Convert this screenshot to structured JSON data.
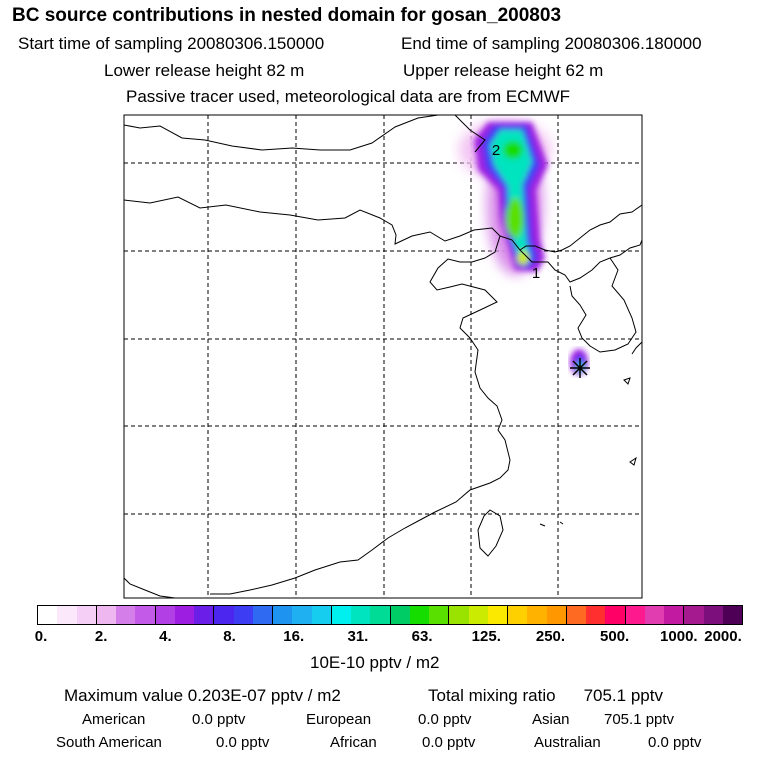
{
  "header": {
    "title": "BC  source contributions in nested domain for gosan_200803",
    "start_time": "Start time of sampling 20080306.150000",
    "end_time": "End time of sampling 20080306.180000",
    "lower_release": "Lower release height   82 m",
    "upper_release": "Upper release height   62 m",
    "tracer_note": "Passive tracer used, meteorological data are from ECMWF"
  },
  "map": {
    "labels": {
      "marker1": "1",
      "marker2": "2"
    }
  },
  "colorbar": {
    "colors": [
      "#ffffff",
      "#fbe8fb",
      "#f5cff5",
      "#efb7ef",
      "#d47ee9",
      "#c45be8",
      "#b23fe5",
      "#9d1ee1",
      "#6a1ee8",
      "#4c26ef",
      "#3d3df4",
      "#2f6af2",
      "#1f93f0",
      "#1fb0f1",
      "#16cdef",
      "#00f0f0",
      "#00e4c0",
      "#00dc96",
      "#00cc66",
      "#16dd00",
      "#5ae000",
      "#9ae300",
      "#cbeb00",
      "#fbea00",
      "#ffd000",
      "#ffb300",
      "#ff9700",
      "#ff6a23",
      "#ff2f2f",
      "#ff0066",
      "#ff198f",
      "#e23db0",
      "#c21aa0",
      "#a61a90",
      "#7d0f7d",
      "#4d0055"
    ],
    "ticks": [
      "0.",
      "2.",
      "4.",
      "8.",
      "16.",
      "31.",
      "63.",
      "125.",
      "250.",
      "500.",
      "1000.",
      "2000."
    ],
    "unit": "10E-10 pptv / m2"
  },
  "summary": {
    "max_value_label": "Maximum value  0.203E-07 pptv / m2",
    "total_mixing_label": "Total mixing ratio",
    "total_mixing_value": "705.1 pptv",
    "regions": [
      {
        "name": "American",
        "value": "0.0 pptv"
      },
      {
        "name": "European",
        "value": "0.0 pptv"
      },
      {
        "name": "Asian",
        "value": "705.1 pptv"
      },
      {
        "name": "South American",
        "value": "0.0 pptv"
      },
      {
        "name": "African",
        "value": "0.0 pptv"
      },
      {
        "name": "Australian",
        "value": "0.0 pptv"
      }
    ]
  }
}
